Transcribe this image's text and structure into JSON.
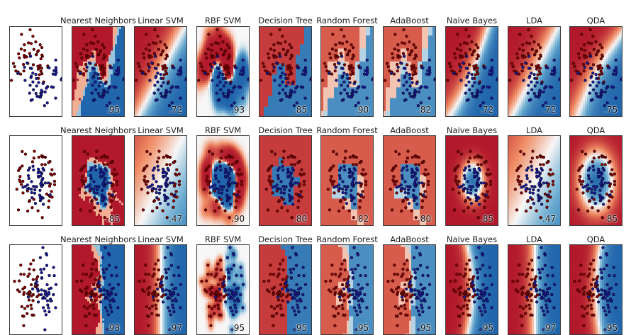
{
  "columns": [
    "",
    "Nearest Neighbors",
    "Linear SVM",
    "RBF SVM",
    "Decision Tree",
    "Random Forest",
    "AdaBoost",
    "Naive Bayes",
    "LDA",
    "QDA"
  ],
  "colors": {
    "class_red": "#8b0000",
    "class_blue": "#1a1a9a",
    "region_red": "#b2182b",
    "region_mid": "#f7f7f7",
    "region_blue": "#2166ac"
  },
  "chart_data": [
    {
      "type": "scatter",
      "dataset": "moons",
      "title": "",
      "classifiers": [
        "Nearest Neighbors",
        "Linear SVM",
        "RBF SVM",
        "Decision Tree",
        "Random Forest",
        "AdaBoost",
        "Naive Bayes",
        "LDA",
        "QDA"
      ],
      "score_labels": [
        ".95",
        ".72",
        ".93",
        ".85",
        ".90",
        ".82",
        ".72",
        ".72",
        ".75"
      ],
      "scores": [
        0.95,
        0.72,
        0.93,
        0.85,
        0.9,
        0.82,
        0.72,
        0.72,
        0.75
      ],
      "series": [
        {
          "values": []
        },
        {
          "values": []
        }
      ]
    },
    {
      "type": "scatter",
      "dataset": "circles",
      "title": "",
      "classifiers": [
        "Nearest Neighbors",
        "Linear SVM",
        "RBF SVM",
        "Decision Tree",
        "Random Forest",
        "AdaBoost",
        "Naive Bayes",
        "LDA",
        "QDA"
      ],
      "score_labels": [
        ".85",
        ".47",
        ".90",
        ".80",
        ".82",
        ".80",
        ".85",
        ".47",
        ".85"
      ],
      "scores": [
        0.85,
        0.47,
        0.9,
        0.8,
        0.82,
        0.8,
        0.85,
        0.47,
        0.85
      ],
      "series": [
        {
          "values": []
        },
        {
          "values": []
        }
      ]
    },
    {
      "type": "scatter",
      "dataset": "linearly separable",
      "title": "",
      "classifiers": [
        "Nearest Neighbors",
        "Linear SVM",
        "RBF SVM",
        "Decision Tree",
        "Random Forest",
        "AdaBoost",
        "Naive Bayes",
        "LDA",
        "QDA"
      ],
      "score_labels": [
        ".93",
        ".97",
        ".95",
        ".95",
        ".95",
        ".95",
        ".95",
        ".97",
        ".95"
      ],
      "scores": [
        0.93,
        0.97,
        0.95,
        0.95,
        0.95,
        0.95,
        0.95,
        0.97,
        0.95
      ],
      "series": [
        {
          "values": []
        },
        {
          "values": []
        }
      ]
    }
  ]
}
